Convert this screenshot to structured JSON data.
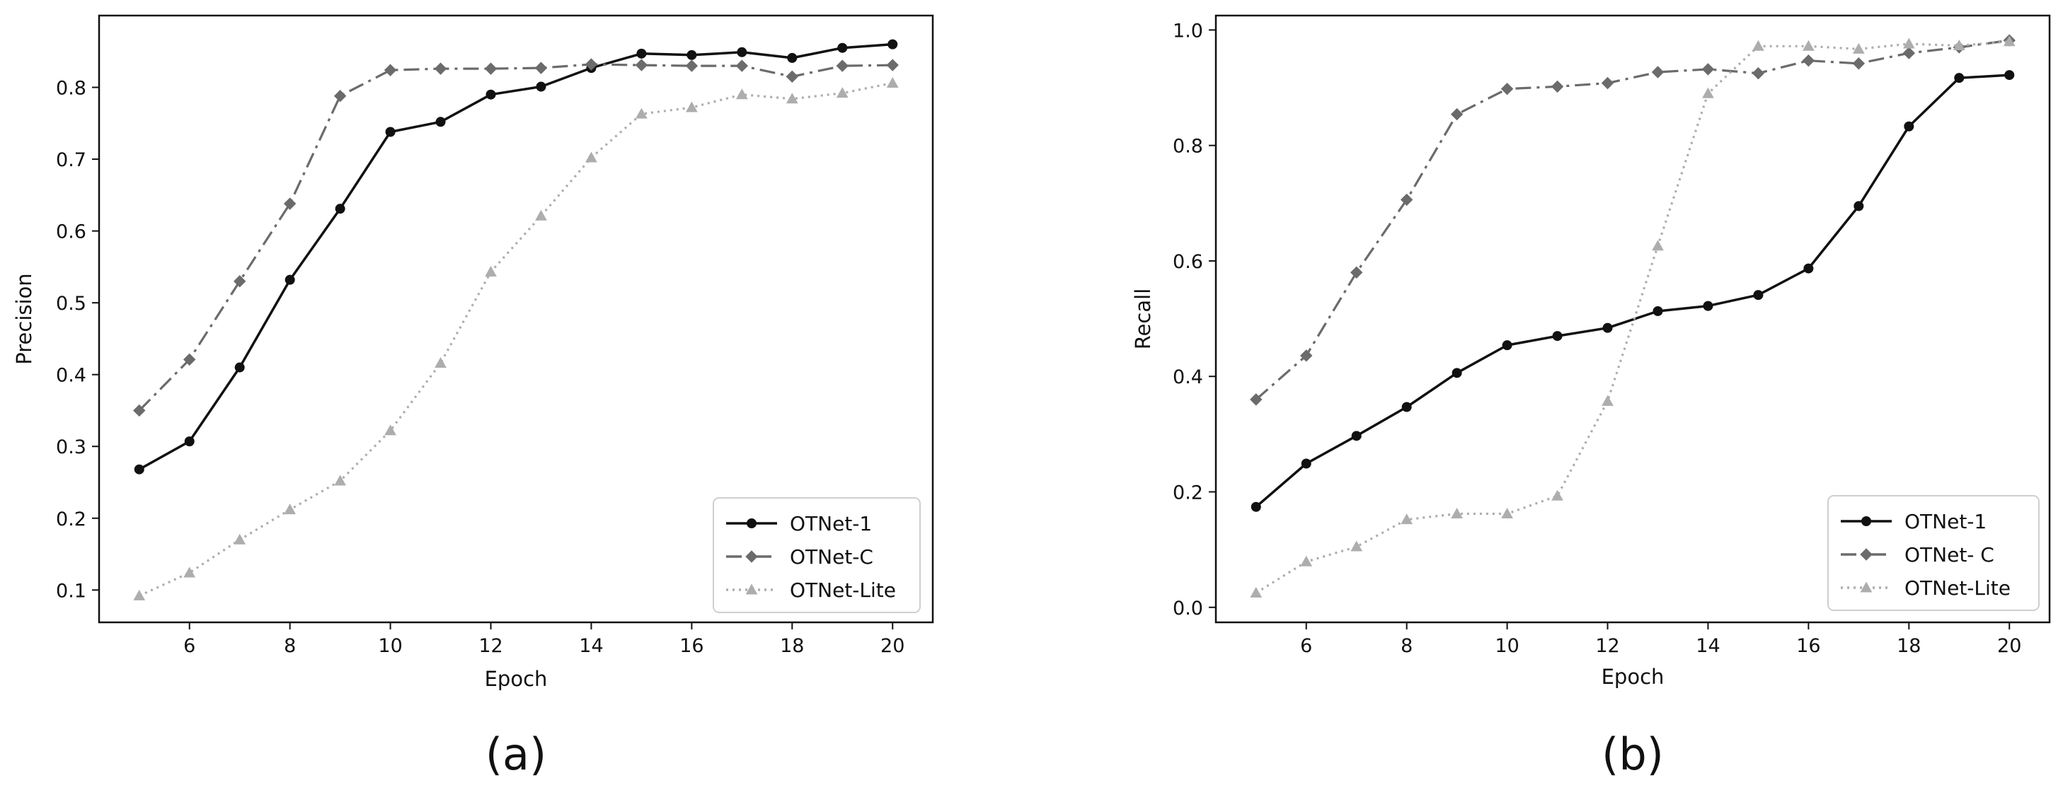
{
  "chart_data": [
    {
      "type": "line",
      "panel_label": "(a)",
      "xlabel": "Epoch",
      "ylabel": "Precision",
      "xlim": [
        4.2,
        20.8
      ],
      "ylim": [
        0.055,
        0.9
      ],
      "xticks": [
        6,
        8,
        10,
        12,
        14,
        16,
        18,
        20
      ],
      "yticks": [
        0.1,
        0.2,
        0.3,
        0.4,
        0.5,
        0.6,
        0.7,
        0.8
      ],
      "ytick_labels": [
        "0.1",
        "0.2",
        "0.3",
        "0.4",
        "0.5",
        "0.6",
        "0.7",
        "0.8"
      ],
      "legend_position": "lower-right",
      "x": [
        5,
        6,
        7,
        8,
        9,
        10,
        11,
        12,
        13,
        14,
        15,
        16,
        17,
        18,
        19,
        20
      ],
      "series": [
        {
          "name": "OTNet-1",
          "style": "solid",
          "marker": "circle",
          "color": "#111111",
          "values": [
            0.268,
            0.307,
            0.41,
            0.532,
            0.631,
            0.738,
            0.752,
            0.79,
            0.801,
            0.827,
            0.847,
            0.845,
            0.849,
            0.841,
            0.855,
            0.86
          ]
        },
        {
          "name": "OTNet-C",
          "style": "dashdot",
          "marker": "diamond",
          "color": "#6b6b6b",
          "values": [
            0.35,
            0.421,
            0.53,
            0.638,
            0.788,
            0.824,
            0.826,
            0.826,
            0.827,
            0.832,
            0.831,
            0.83,
            0.83,
            0.815,
            0.83,
            0.831
          ]
        },
        {
          "name": "OTNet-Lite",
          "style": "dotted",
          "marker": "triangle",
          "color": "#adadad",
          "values": [
            0.092,
            0.124,
            0.17,
            0.212,
            0.252,
            0.322,
            0.416,
            0.543,
            0.621,
            0.702,
            0.763,
            0.772,
            0.79,
            0.784,
            0.792,
            0.806
          ]
        }
      ]
    },
    {
      "type": "line",
      "panel_label": "(b)",
      "xlabel": "Epoch",
      "ylabel": "Recall",
      "xlim": [
        4.2,
        20.8
      ],
      "ylim": [
        -0.026,
        1.025
      ],
      "xticks": [
        6,
        8,
        10,
        12,
        14,
        16,
        18,
        20
      ],
      "yticks": [
        0.0,
        0.2,
        0.4,
        0.6,
        0.8,
        1.0
      ],
      "ytick_labels": [
        "0.0",
        "0.2",
        "0.4",
        "0.6",
        "0.8",
        "1.0"
      ],
      "legend_position": "lower-right",
      "x": [
        5,
        6,
        7,
        8,
        9,
        10,
        11,
        12,
        13,
        14,
        15,
        16,
        17,
        18,
        19,
        20
      ],
      "series": [
        {
          "name": "OTNet-1",
          "style": "solid",
          "marker": "circle",
          "color": "#111111",
          "values": [
            0.174,
            0.249,
            0.297,
            0.347,
            0.406,
            0.454,
            0.47,
            0.484,
            0.513,
            0.522,
            0.541,
            0.587,
            0.695,
            0.833,
            0.917,
            0.922
          ]
        },
        {
          "name": "OTNet- C",
          "style": "dashdot",
          "marker": "diamond",
          "color": "#6b6b6b",
          "values": [
            0.36,
            0.436,
            0.58,
            0.706,
            0.854,
            0.898,
            0.902,
            0.908,
            0.927,
            0.932,
            0.925,
            0.947,
            0.942,
            0.96,
            0.97,
            0.982
          ]
        },
        {
          "name": "OTNet-Lite",
          "style": "dotted",
          "marker": "triangle",
          "color": "#adadad",
          "values": [
            0.025,
            0.079,
            0.105,
            0.152,
            0.162,
            0.162,
            0.193,
            0.357,
            0.626,
            0.89,
            0.972,
            0.972,
            0.967,
            0.976,
            0.973,
            0.98
          ]
        }
      ]
    }
  ]
}
